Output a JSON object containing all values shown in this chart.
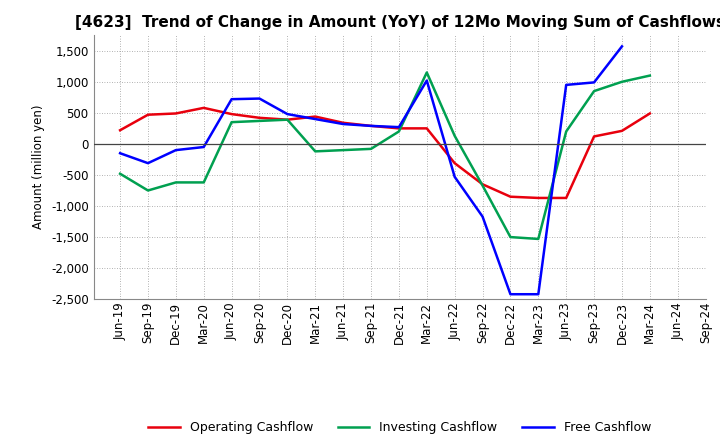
{
  "title": "[4623]  Trend of Change in Amount (YoY) of 12Mo Moving Sum of Cashflows",
  "ylabel": "Amount (million yen)",
  "x_labels": [
    "Jun-19",
    "Sep-19",
    "Dec-19",
    "Mar-20",
    "Jun-20",
    "Sep-20",
    "Dec-20",
    "Mar-21",
    "Jun-21",
    "Sep-21",
    "Dec-21",
    "Mar-22",
    "Jun-22",
    "Sep-22",
    "Dec-22",
    "Mar-23",
    "Jun-23",
    "Sep-23",
    "Dec-23",
    "Mar-24",
    "Jun-24",
    "Sep-24"
  ],
  "operating": [
    220,
    470,
    490,
    580,
    480,
    420,
    390,
    440,
    340,
    290,
    250,
    250,
    -310,
    -650,
    -850,
    -870,
    -870,
    120,
    210,
    490,
    null,
    null
  ],
  "investing": [
    -480,
    -750,
    -620,
    -620,
    350,
    370,
    390,
    -120,
    -100,
    -80,
    200,
    1150,
    130,
    -670,
    -1500,
    -1530,
    200,
    850,
    1000,
    1100,
    null,
    null
  ],
  "free": [
    -150,
    -310,
    -100,
    -50,
    720,
    730,
    480,
    400,
    320,
    290,
    270,
    1020,
    -530,
    -1170,
    -2420,
    -2420,
    950,
    990,
    1570,
    null,
    null
  ],
  "operating_color": "#e8000d",
  "investing_color": "#00a050",
  "free_color": "#0000ff",
  "ylim": [
    -2500,
    1750
  ],
  "yticks": [
    -2500,
    -2000,
    -1500,
    -1000,
    -500,
    0,
    500,
    1000,
    1500
  ],
  "background_color": "#ffffff",
  "grid_color": "#999999",
  "title_fontsize": 11,
  "legend_fontsize": 9,
  "axis_fontsize": 8.5
}
